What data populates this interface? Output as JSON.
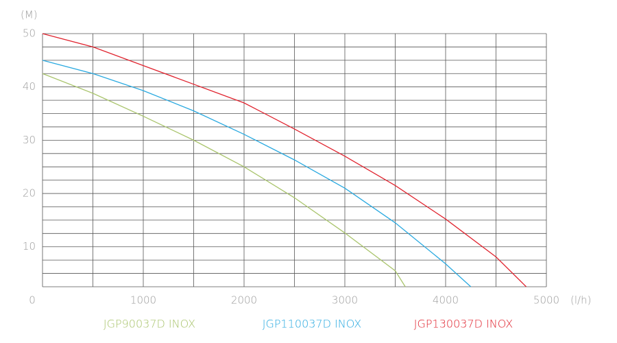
{
  "chart_data": {
    "type": "line",
    "y_label": "(M)",
    "x_label": "(l/h)",
    "xlim": [
      0,
      5000
    ],
    "xticks": [
      0,
      1000,
      2000,
      3000,
      4000,
      5000
    ],
    "ylim": [
      2.5,
      50
    ],
    "yticks": [
      10,
      20,
      30,
      40,
      50
    ],
    "xgrid": [
      0,
      500,
      1000,
      1500,
      2000,
      2500,
      3000,
      3500,
      4000,
      4500,
      5000
    ],
    "ygrid": [
      2.5,
      5,
      7.5,
      10,
      12.5,
      15,
      17.5,
      20,
      22.5,
      25,
      27.5,
      30,
      32.5,
      35,
      37.5,
      40,
      42.5,
      45,
      47.5,
      50
    ],
    "series": [
      {
        "name": "JGP90037D INOX",
        "color": "#a9c46c",
        "x": [
          0,
          500,
          1000,
          1500,
          2000,
          2500,
          3000,
          3500,
          3600
        ],
        "values": [
          42.5,
          38.8,
          34.5,
          30,
          25,
          19.2,
          12.6,
          5.5,
          2.5
        ]
      },
      {
        "name": "JGP110037D INOX",
        "color": "#29a9e0",
        "x": [
          0,
          500,
          1000,
          1500,
          2000,
          2500,
          3000,
          3500,
          4000,
          4250
        ],
        "values": [
          45,
          42.5,
          39.3,
          35.5,
          31.1,
          26.3,
          21,
          14.5,
          6.8,
          2.5
        ]
      },
      {
        "name": "JGP130037D INOX",
        "color": "#e0232e",
        "x": [
          0,
          500,
          1000,
          1500,
          2000,
          2500,
          3000,
          3500,
          4000,
          4500,
          4800
        ],
        "values": [
          50,
          47.5,
          44,
          40.5,
          37,
          32.1,
          27,
          21.5,
          15.2,
          8.1,
          2.5
        ]
      }
    ]
  }
}
